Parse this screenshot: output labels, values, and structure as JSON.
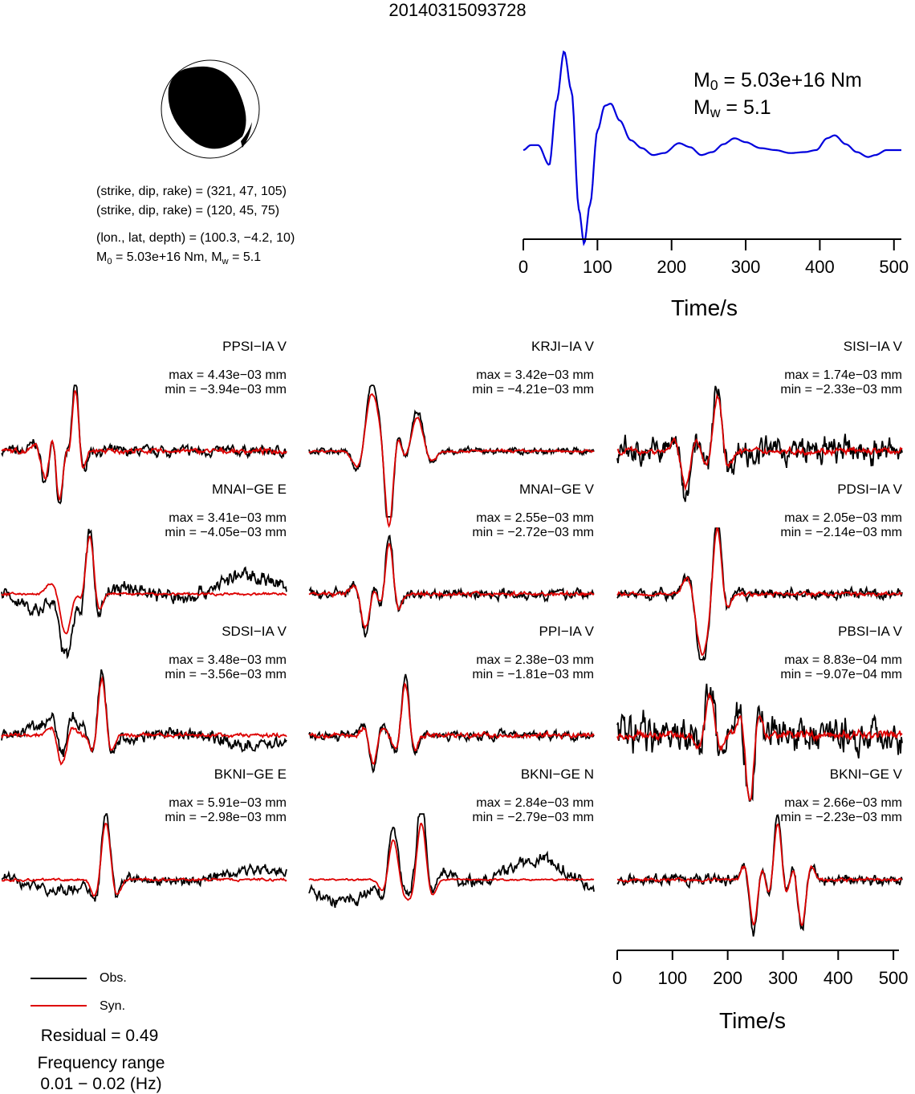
{
  "title": "20140315093728",
  "focal_mechanism": {
    "planes": [
      {
        "prefix": "(strike, dip, rake) = ",
        "values": "(321, 47, 105)"
      },
      {
        "prefix": "(strike, dip, rake) = ",
        "values": "(120, 45, 75)"
      }
    ],
    "location_prefix": "(lon., lat, depth) = ",
    "location_values": "(100.3, −4.2, 10)",
    "moment_line": "M0 = 5.03e+16 Nm, Mw = 5.1",
    "moment_parts": {
      "m0_symbol": "M",
      "m0_sub": "0",
      "m0_value": " = 5.03e+16 Nm, ",
      "mw_symbol": "M",
      "mw_sub": "w",
      "mw_value": " = 5.1"
    }
  },
  "stf": {
    "m0_symbol": "M",
    "m0_sub": "0",
    "m0_value": " = 5.03e+16 Nm",
    "mw_symbol": "M",
    "mw_sub": "w",
    "mw_value": " = 5.1",
    "xlabel": "Time/s",
    "xticks": [
      "0",
      "100",
      "200",
      "300",
      "400",
      "500"
    ]
  },
  "waveform_axis": {
    "xlabel": "Time/s",
    "xticks": [
      "0",
      "100",
      "200",
      "300",
      "400",
      "500"
    ]
  },
  "legend": {
    "obs": "Obs.",
    "syn": "Syn."
  },
  "residual": "Residual = 0.49",
  "frequency": {
    "line1": "Frequency range",
    "line2": "0.01 − 0.02 (Hz)"
  },
  "colors": {
    "obs": "#000000",
    "syn": "#dd0000",
    "stf": "#0000dd"
  },
  "stations": [
    {
      "name": "PPSI−IA V",
      "max": "max = 4.43e−03 mm",
      "min": "min = −3.94e−03 mm"
    },
    {
      "name": "KRJI−IA V",
      "max": "max = 3.42e−03 mm",
      "min": "min = −4.21e−03 mm"
    },
    {
      "name": "SISI−IA V",
      "max": "max = 1.74e−03 mm",
      "min": "min = −2.33e−03 mm"
    },
    {
      "name": "MNAI−GE E",
      "max": "max = 3.41e−03 mm",
      "min": "min = −4.05e−03 mm"
    },
    {
      "name": "MNAI−GE V",
      "max": "max = 2.55e−03 mm",
      "min": "min = −2.72e−03 mm"
    },
    {
      "name": "PDSI−IA V",
      "max": "max = 2.05e−03 mm",
      "min": "min = −2.14e−03 mm"
    },
    {
      "name": "SDSI−IA V",
      "max": "max = 3.48e−03 mm",
      "min": "min = −3.56e−03 mm"
    },
    {
      "name": "PPI−IA V",
      "max": "max = 2.38e−03 mm",
      "min": "min = −1.81e−03 mm"
    },
    {
      "name": "PBSI−IA V",
      "max": "max = 8.83e−04 mm",
      "min": "min = −9.07e−04 mm"
    },
    {
      "name": "BKNI−GE E",
      "max": "max = 5.91e−03 mm",
      "min": "min = −2.98e−03 mm"
    },
    {
      "name": "BKNI−GE N",
      "max": "max = 2.84e−03 mm",
      "min": "min = −2.79e−03 mm"
    },
    {
      "name": "BKNI−GE V",
      "max": "max = 2.66e−03 mm",
      "min": "min = −2.23e−03 mm"
    }
  ],
  "chart_data": [
    {
      "type": "line",
      "name_in_figure": "source time function",
      "x_axis": {
        "label": "Time/s",
        "range": [
          0,
          510
        ],
        "ticks": [
          0,
          100,
          200,
          300,
          400,
          500
        ]
      },
      "series": [
        {
          "color": "#0000dd",
          "points": [
            [
              0,
              0.0
            ],
            [
              10,
              0.05
            ],
            [
              20,
              0.05
            ],
            [
              35,
              -0.15
            ],
            [
              45,
              0.5
            ],
            [
              55,
              1.0
            ],
            [
              65,
              0.6
            ],
            [
              75,
              -0.6
            ],
            [
              82,
              -0.95
            ],
            [
              90,
              -0.55
            ],
            [
              100,
              0.2
            ],
            [
              110,
              0.45
            ],
            [
              118,
              0.47
            ],
            [
              130,
              0.3
            ],
            [
              145,
              0.1
            ],
            [
              160,
              0.02
            ],
            [
              175,
              -0.05
            ],
            [
              190,
              -0.03
            ],
            [
              210,
              0.07
            ],
            [
              225,
              0.03
            ],
            [
              240,
              -0.05
            ],
            [
              255,
              -0.02
            ],
            [
              270,
              0.06
            ],
            [
              285,
              0.12
            ],
            [
              300,
              0.08
            ],
            [
              320,
              0.02
            ],
            [
              340,
              0.0
            ],
            [
              360,
              -0.03
            ],
            [
              380,
              -0.02
            ],
            [
              395,
              0.0
            ],
            [
              410,
              0.12
            ],
            [
              420,
              0.15
            ],
            [
              435,
              0.06
            ],
            [
              450,
              -0.02
            ],
            [
              465,
              -0.07
            ],
            [
              475,
              -0.05
            ],
            [
              490,
              0.0
            ],
            [
              510,
              0.0
            ]
          ]
        }
      ]
    },
    {
      "type": "line",
      "name_in_figure": "waveform fits (12 stations, Obs. vs Syn.)",
      "x_axis": {
        "label": "Time/s",
        "range": [
          0,
          510
        ],
        "ticks": [
          0,
          100,
          200,
          300,
          400,
          500
        ]
      },
      "residual": 0.49,
      "frequency_range_hz": [
        0.01,
        0.02
      ]
    }
  ]
}
